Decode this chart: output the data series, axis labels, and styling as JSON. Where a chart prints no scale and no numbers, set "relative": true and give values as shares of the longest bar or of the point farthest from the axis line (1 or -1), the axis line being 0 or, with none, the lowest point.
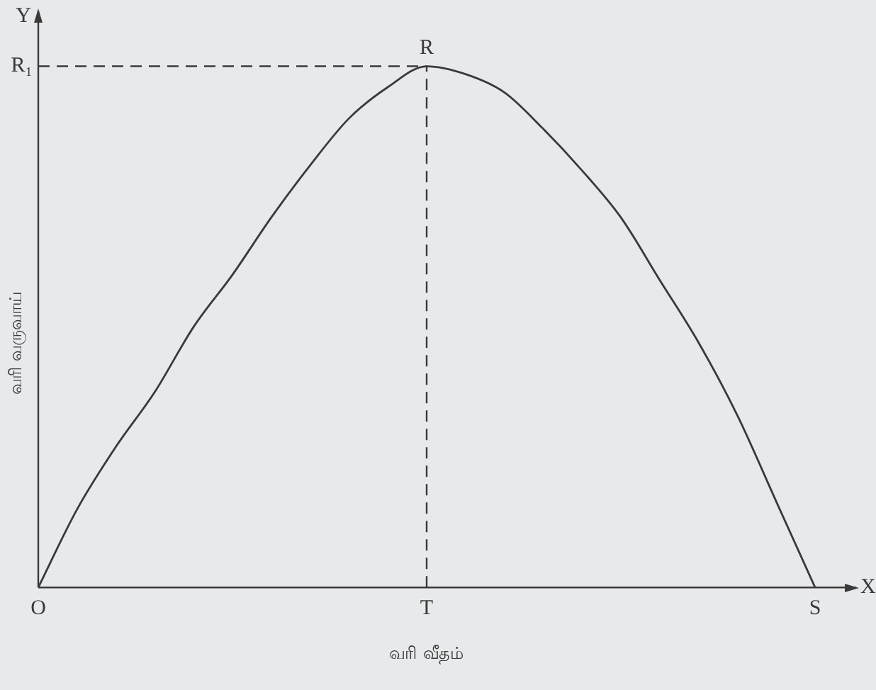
{
  "chart_data": {
    "type": "line",
    "relative": true,
    "xlabel": "வரி வீதம்",
    "ylabel": "வரி வருவாய்",
    "categories": [
      "O",
      null,
      null,
      null,
      null,
      null,
      null,
      null,
      null,
      null,
      "T",
      null,
      null,
      null,
      null,
      null,
      null,
      null,
      null,
      null,
      "S"
    ],
    "series": [
      {
        "color": "#3a3a3a",
        "values": [
          0,
          0.15,
          0.27,
          0.375,
          0.5,
          0.6,
          0.71,
          0.81,
          0.9,
          0.96,
          1,
          0.985,
          0.95,
          0.88,
          0.8,
          0.71,
          0.59,
          0.47,
          0.33,
          0.165,
          0
        ]
      }
    ],
    "ref_lines": [
      {
        "axis": "y",
        "value": 1,
        "label": "R₁",
        "line_style": "dashed",
        "color": "#3a3a3a"
      },
      {
        "axis": "x",
        "value": "T",
        "line_style": "dashed",
        "color": "#3a3a3a"
      }
    ],
    "annotations": [
      "Y",
      "X",
      {
        "text": "R",
        "x": "T",
        "y": 1
      }
    ],
    "marker": "none",
    "line_style": "solid",
    "grid": false,
    "legend": false
  }
}
